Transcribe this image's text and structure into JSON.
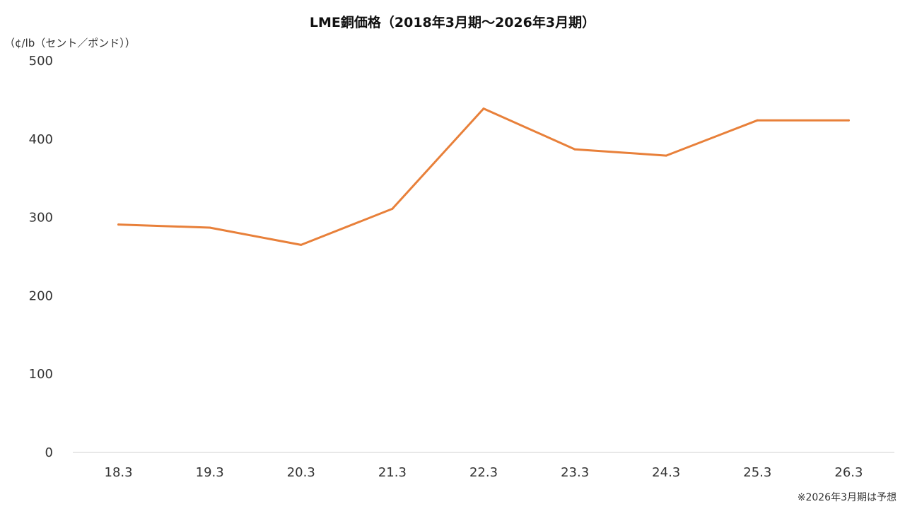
{
  "chart_data": {
    "type": "line",
    "title": "LME銅価格（2018年3月期～2026年3月期）",
    "ylabel": "（¢/lb（セント／ポンド））",
    "xlabel": "",
    "categories": [
      "18.3",
      "19.3",
      "20.3",
      "21.3",
      "22.3",
      "23.3",
      "24.3",
      "25.3",
      "26.3"
    ],
    "series": [
      {
        "name": "",
        "values": [
          291,
          287,
          265,
          311,
          439,
          387,
          379,
          424,
          424
        ]
      }
    ],
    "ylim": [
      0,
      500
    ],
    "yticks": [
      "0",
      "100",
      "200",
      "300",
      "400",
      "500"
    ],
    "grid": false,
    "line_color": "#E8803A",
    "footnote": "※2026年3月期は予想"
  }
}
